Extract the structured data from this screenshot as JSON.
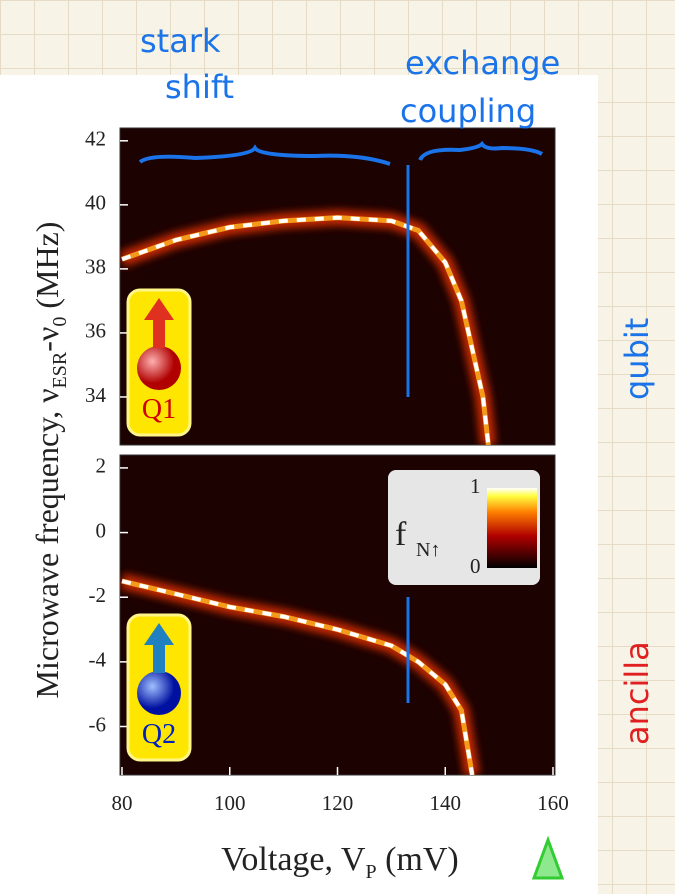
{
  "chart_data": [
    {
      "type": "heatmap",
      "label": "Q1",
      "xlim": [
        80,
        160
      ],
      "ylim": [
        32.5,
        42.4
      ],
      "yticks": [
        34,
        36,
        38,
        40,
        42
      ],
      "x": [
        80,
        90,
        100,
        110,
        120,
        130,
        135,
        140,
        143,
        145,
        147,
        148
      ],
      "values": [
        38.3,
        38.9,
        39.3,
        39.5,
        39.6,
        39.5,
        39.2,
        38.2,
        37,
        35.5,
        34,
        32.5
      ],
      "color": "#ffffff"
    },
    {
      "type": "heatmap",
      "label": "Q2",
      "xlim": [
        80,
        160
      ],
      "ylim": [
        -7.5,
        2.4
      ],
      "yticks": [
        -6,
        -4,
        -2,
        0,
        2
      ],
      "xticks": [
        80,
        100,
        120,
        140,
        160
      ],
      "x": [
        80,
        90,
        100,
        110,
        120,
        130,
        135,
        140,
        143,
        144,
        145
      ],
      "values": [
        -1.5,
        -1.9,
        -2.3,
        -2.6,
        -3.0,
        -3.5,
        -4.0,
        -4.7,
        -5.5,
        -6.5,
        -7.5
      ],
      "color": "#ffffff",
      "colorbar": {
        "label": "f",
        "label_sub": "N↑",
        "ticks": [
          0,
          1
        ]
      }
    }
  ],
  "figure": {
    "ylabel": [
      "Microwave frequency, ν",
      "ESR",
      "-ν",
      "0",
      " (MHz)"
    ],
    "xlabel": [
      "Voltage, V",
      "P",
      " (mV)"
    ]
  },
  "annotations": {
    "stark_shift": [
      "stark",
      "shift"
    ],
    "exchange_coupling": [
      "exchange",
      "coupling"
    ],
    "qubit": "qubit",
    "ancilla": "ancilla"
  }
}
